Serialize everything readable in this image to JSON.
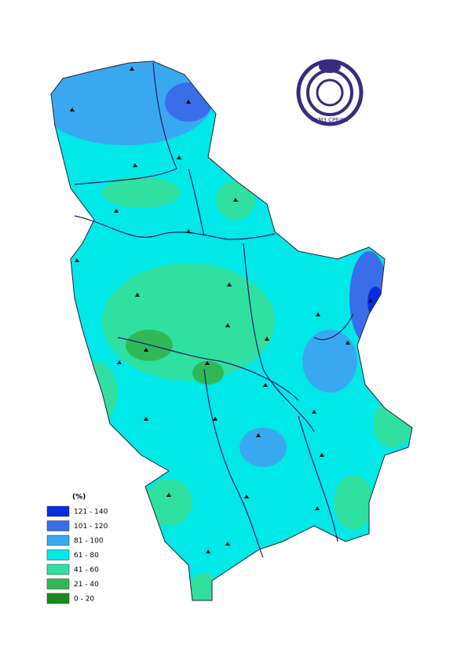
{
  "legend": {
    "title": "(%)",
    "items": [
      {
        "label": "121 - 140",
        "color": "#0a2be0"
      },
      {
        "label": "101 - 120",
        "color": "#3a6ee8"
      },
      {
        "label": "81 - 100",
        "color": "#3aa8f0"
      },
      {
        "label": "61 - 80",
        "color": "#00e8e8"
      },
      {
        "label": "41 - 60",
        "color": "#30e0a0"
      },
      {
        "label": "21 - 40",
        "color": "#30b858"
      },
      {
        "label": "0 - 20",
        "color": "#1a8a1a"
      }
    ]
  },
  "logo": {
    "text": "РХМЗ СРБИЈЕ"
  }
}
